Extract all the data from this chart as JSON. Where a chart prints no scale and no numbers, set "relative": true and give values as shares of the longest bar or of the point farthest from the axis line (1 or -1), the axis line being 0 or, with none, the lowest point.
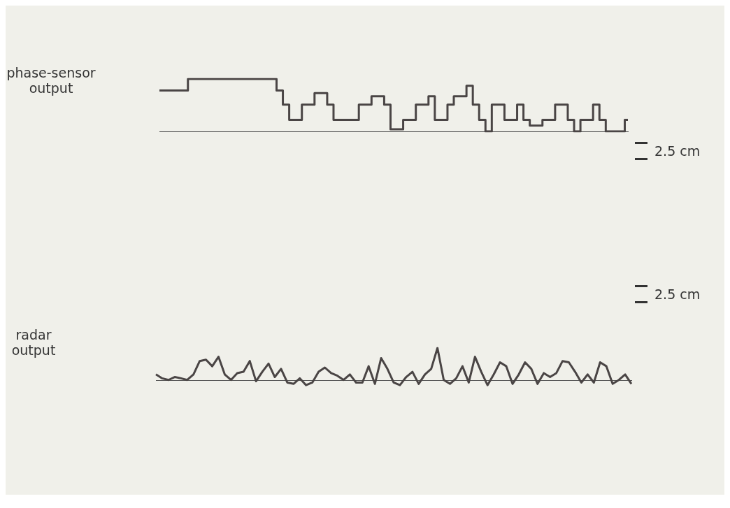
{
  "chart_data": [
    {
      "type": "step",
      "ylabel": "phase-sensor output",
      "relative": true,
      "annotations": [
        "2.5 cm"
      ],
      "categories": [
        null,
        null,
        null,
        null,
        null,
        null,
        null,
        null,
        null,
        null,
        null,
        null,
        null,
        null,
        null,
        null,
        null,
        null,
        null,
        null,
        null,
        null,
        null,
        null,
        null,
        null,
        null,
        null,
        null,
        null,
        null,
        null,
        null,
        null,
        null,
        null,
        null,
        null,
        null,
        null,
        null,
        null,
        null,
        null,
        null,
        null,
        null,
        null,
        null,
        null,
        null,
        null,
        null,
        null,
        null,
        null,
        null,
        null,
        null,
        null,
        null,
        null,
        null,
        null,
        null,
        null,
        null,
        null,
        null,
        null,
        null,
        null,
        null,
        null,
        null
      ],
      "series": [
        {
          "color": "#4a4545",
          "values": [
            0.78,
            0.78,
            0.78,
            0.78,
            0.78,
            1,
            1,
            1,
            1,
            1,
            1,
            1,
            1,
            1,
            1,
            1,
            1,
            1,
            1,
            0.78,
            0.51,
            0.22,
            0.22,
            0.51,
            0.51,
            0.73,
            0.73,
            0.51,
            0.22,
            0.22,
            0.22,
            0.22,
            0.51,
            0.51,
            0.67,
            0.67,
            0.51,
            0.04,
            0.04,
            0.22,
            0.22,
            0.51,
            0.51,
            0.67,
            0.22,
            0.22,
            0.51,
            0.67,
            0.67,
            0.87,
            0.51,
            0.22,
            0,
            0.51,
            0.51,
            0.22,
            0.22,
            0.51,
            0.22,
            0.11,
            0.11,
            0.22,
            0.22,
            0.51,
            0.51,
            0.22,
            0,
            0.22,
            0.22,
            0.51,
            0.22,
            0,
            0,
            0,
            0.22
          ]
        }
      ]
    },
    {
      "type": "line",
      "ylabel": "radar output",
      "relative": true,
      "annotations": [
        "2.5 cm"
      ],
      "categories": [
        null,
        null,
        null,
        null,
        null,
        null,
        null,
        null,
        null,
        null,
        null,
        null,
        null,
        null,
        null,
        null,
        null,
        null,
        null,
        null,
        null,
        null,
        null,
        null,
        null,
        null,
        null,
        null,
        null,
        null,
        null,
        null,
        null,
        null,
        null,
        null,
        null,
        null,
        null,
        null,
        null,
        null,
        null,
        null,
        null,
        null,
        null,
        null,
        null,
        null,
        null,
        null,
        null,
        null,
        null,
        null,
        null,
        null,
        null,
        null,
        null,
        null,
        null,
        null,
        null,
        null,
        null,
        null,
        null,
        null,
        null,
        null,
        null,
        null,
        null,
        null,
        null
      ],
      "series": [
        {
          "color": "#4a4545",
          "values": [
            0.19,
            0.07,
            0.02,
            0.11,
            0.07,
            0.02,
            0.19,
            0.6,
            0.64,
            0.44,
            0.73,
            0.19,
            0.02,
            0.23,
            0.27,
            0.6,
            -0.02,
            0.27,
            0.52,
            0.11,
            0.36,
            -0.06,
            -0.1,
            0.07,
            -0.14,
            -0.06,
            0.27,
            0.4,
            0.23,
            0.15,
            0.02,
            0.19,
            -0.06,
            -0.06,
            0.44,
            -0.1,
            0.69,
            0.36,
            -0.06,
            -0.14,
            0.11,
            0.27,
            -0.1,
            0.19,
            0.36,
            1,
            0.02,
            -0.1,
            0.07,
            0.44,
            -0.06,
            0.73,
            0.27,
            -0.14,
            0.19,
            0.56,
            0.44,
            -0.1,
            0.19,
            0.56,
            0.36,
            -0.1,
            0.23,
            0.11,
            0.23,
            0.6,
            0.56,
            0.27,
            -0.06,
            0.19,
            -0.06,
            0.56,
            0.44,
            -0.1,
            0.02,
            0.19,
            -0.1
          ]
        }
      ]
    }
  ]
}
